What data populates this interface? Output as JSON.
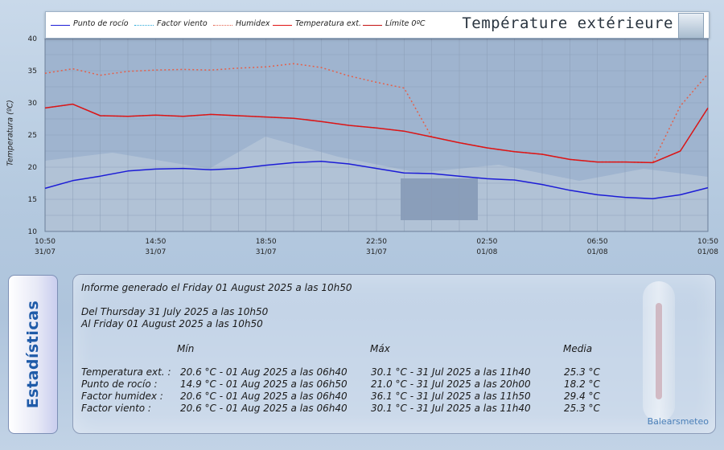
{
  "chart_data": {
    "type": "line",
    "ylabel": "Temperatura (ºC)",
    "ylim": [
      10,
      40
    ],
    "yticks": [
      10,
      15,
      20,
      25,
      30,
      35,
      40
    ],
    "xlabels": [
      {
        "t": "10:50",
        "d": "31/07"
      },
      {
        "t": "14:50",
        "d": "31/07"
      },
      {
        "t": "18:50",
        "d": "31/07"
      },
      {
        "t": "22:50",
        "d": "31/07"
      },
      {
        "t": "02:50",
        "d": "01/08"
      },
      {
        "t": "06:50",
        "d": "01/08"
      },
      {
        "t": "10:50",
        "d": "01/08"
      }
    ],
    "x_hours": [
      0,
      1,
      2,
      3,
      4,
      5,
      6,
      7,
      8,
      9,
      10,
      11,
      12,
      13,
      14,
      15,
      16,
      17,
      18,
      19,
      20,
      21,
      22,
      23,
      24
    ],
    "series": [
      {
        "name": "Punto de rocío",
        "color": "#1c1cd6",
        "dash": "",
        "values": [
          16.7,
          17.9,
          18.6,
          19.4,
          19.7,
          19.8,
          19.6,
          19.8,
          20.3,
          20.7,
          20.9,
          20.5,
          19.8,
          19.1,
          19.0,
          18.6,
          18.2,
          18.0,
          17.3,
          16.4,
          15.7,
          15.3,
          15.1,
          15.7,
          16.8
        ]
      },
      {
        "name": "Factor viento",
        "color": "#27a8d8",
        "dash": "2,2",
        "values": [
          29.2,
          29.8,
          28.0,
          27.9,
          28.1,
          27.9,
          28.2,
          28.0,
          27.8,
          27.6,
          27.1,
          26.5,
          26.1,
          25.6,
          24.7,
          23.8,
          23.0,
          22.4,
          22.0,
          21.2,
          20.8,
          20.8,
          20.7,
          22.5,
          29.2
        ]
      },
      {
        "name": "Humidex",
        "color": "#e4604a",
        "dash": "2,3",
        "values": [
          34.6,
          35.3,
          34.3,
          34.9,
          35.1,
          35.2,
          35.1,
          35.4,
          35.6,
          36.1,
          35.5,
          34.2,
          33.2,
          32.3,
          24.7,
          23.8,
          23.0,
          22.4,
          22.0,
          21.2,
          20.8,
          20.8,
          20.7,
          29.5,
          34.5
        ]
      },
      {
        "name": "Temperatura ext.",
        "color": "#e01414",
        "dash": "",
        "values": [
          29.2,
          29.8,
          28.0,
          27.9,
          28.1,
          27.9,
          28.2,
          28.0,
          27.8,
          27.6,
          27.1,
          26.5,
          26.1,
          25.6,
          24.7,
          23.8,
          23.0,
          22.4,
          22.0,
          21.2,
          20.8,
          20.8,
          20.7,
          22.5,
          29.2
        ]
      },
      {
        "name": "Límite 0ºC",
        "color": "#c41212",
        "dash": "",
        "values": []
      }
    ],
    "title": "Température extérieure",
    "grid": true,
    "legend_placement": "top"
  },
  "stats": {
    "tab_label": "Estadísticas",
    "report_line": "Informe generado el Friday 01 August 2025 a las 10h50",
    "period_from": "Del Thursday 31 July 2025 a las 10h50",
    "period_to": "Al Friday 01 August 2025 a las 10h50",
    "headers": {
      "min": "Mín",
      "max": "Máx",
      "media": "Media"
    },
    "rows": [
      {
        "label": "Temperatura ext. :",
        "min": "20.6 °C - 01 Aug 2025 a las 06h40",
        "max": "30.1 °C - 31 Jul 2025 a las 11h40",
        "media": "25.3 °C"
      },
      {
        "label": "Punto de rocío :",
        "min": "14.9 °C - 01 Aug 2025 a las 06h50",
        "max": "21.0 °C - 31 Jul 2025 a las 20h00",
        "media": "18.2 °C"
      },
      {
        "label": "Factor humidex :",
        "min": "20.6 °C - 01 Aug 2025 a las 06h40",
        "max": "36.1 °C - 31 Jul 2025 a las 11h50",
        "media": "29.4 °C"
      },
      {
        "label": "Factor viento :",
        "min": "20.6 °C - 01 Aug 2025 a las 06h40",
        "max": "30.1 °C - 31 Jul 2025 a las 11h40",
        "media": "25.3 °C"
      }
    ],
    "brand": "Balearsmeteo"
  }
}
